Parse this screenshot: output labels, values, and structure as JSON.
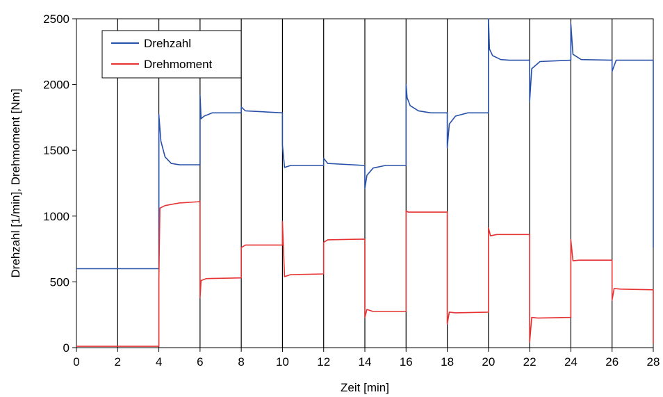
{
  "chart_data": {
    "type": "line",
    "xlabel": "Zeit [min]",
    "ylabel": "Drehzahl [1/min], Drehmoment [Nm]",
    "xlim": [
      0,
      28
    ],
    "ylim": [
      0,
      2500
    ],
    "x_ticks": [
      0,
      2,
      4,
      6,
      8,
      10,
      12,
      14,
      16,
      18,
      20,
      22,
      24,
      26,
      28
    ],
    "y_ticks": [
      0,
      500,
      1000,
      1500,
      2000,
      2500
    ],
    "grid": "vertical lines every 2 min",
    "legend_position": "top-left",
    "series": [
      {
        "name": "Drehzahl",
        "color": "#2850a8",
        "x": [
          0,
          4,
          4,
          4.1,
          4.3,
          4.6,
          5,
          6,
          6,
          6.05,
          6.2,
          6.6,
          7,
          8,
          8,
          8.2,
          10,
          10,
          10.1,
          10.4,
          12,
          12,
          12.2,
          14,
          14,
          14.1,
          14.4,
          15,
          16,
          16,
          16.05,
          16.2,
          16.6,
          17.2,
          18,
          18,
          18.1,
          18.4,
          19,
          20,
          20,
          20.05,
          20.2,
          20.6,
          21,
          22,
          22,
          22.1,
          22.5,
          24,
          24,
          24.1,
          24.5,
          26,
          26,
          26.2,
          28,
          28
        ],
        "values": [
          600,
          600,
          1770,
          1570,
          1450,
          1400,
          1390,
          1390,
          1920,
          1740,
          1760,
          1785,
          1785,
          1785,
          1830,
          1800,
          1785,
          1540,
          1370,
          1385,
          1385,
          1440,
          1400,
          1385,
          1210,
          1310,
          1365,
          1385,
          1385,
          2000,
          1900,
          1840,
          1800,
          1785,
          1785,
          1520,
          1700,
          1760,
          1785,
          1785,
          2500,
          2270,
          2220,
          2190,
          2185,
          2185,
          1870,
          2120,
          2175,
          2185,
          2460,
          2230,
          2190,
          2185,
          2100,
          2185,
          2185,
          760
        ]
      },
      {
        "name": "Drehmoment",
        "color": "#e63232",
        "x": [
          0,
          4,
          4,
          4.05,
          4.3,
          5,
          6,
          6,
          6.05,
          6.3,
          8,
          8,
          8.2,
          10,
          10,
          10.1,
          10.4,
          12,
          12,
          12.2,
          14,
          14,
          14.1,
          14.4,
          16,
          16,
          16.1,
          16.4,
          18,
          18,
          18.1,
          18.4,
          20,
          20,
          20.1,
          20.4,
          22,
          22,
          22.1,
          22.4,
          24,
          24,
          24.1,
          24.4,
          26,
          26,
          26.1,
          26.4,
          28,
          28
        ],
        "values": [
          10,
          10,
          520,
          1060,
          1080,
          1100,
          1110,
          380,
          510,
          525,
          530,
          760,
          780,
          780,
          960,
          540,
          555,
          560,
          800,
          820,
          825,
          230,
          290,
          275,
          275,
          1040,
          1030,
          1030,
          1030,
          180,
          270,
          265,
          270,
          910,
          850,
          860,
          860,
          40,
          230,
          225,
          230,
          820,
          660,
          665,
          665,
          360,
          450,
          445,
          440,
          30
        ]
      }
    ]
  }
}
